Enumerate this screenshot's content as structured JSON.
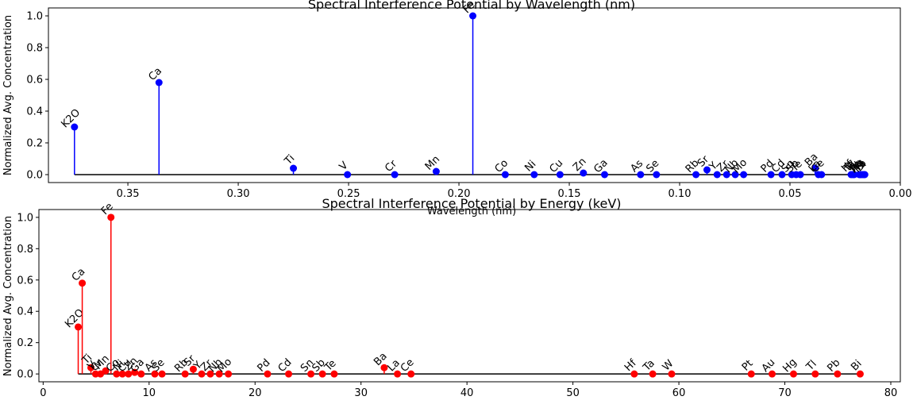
{
  "chart_data": [
    {
      "type": "stem",
      "title": "Spectral Interference Potential by Wavelength (nm)",
      "xlabel": "Wavelength (nm)",
      "ylabel": "Normalized Avg. Concentration",
      "xlim": [
        0.386,
        0.0
      ],
      "ylim": [
        -0.05,
        1.05
      ],
      "xticks": [
        0.35,
        0.3,
        0.25,
        0.2,
        0.15,
        0.1,
        0.05,
        0.0
      ],
      "xtick_labels": [
        "0.35",
        "0.30",
        "0.25",
        "0.20",
        "0.15",
        "0.10",
        "0.05",
        "0.00"
      ],
      "yticks": [
        0.0,
        0.2,
        0.4,
        0.6,
        0.8,
        1.0
      ],
      "ytick_labels": [
        "0.0",
        "0.2",
        "0.4",
        "0.6",
        "0.8",
        "1.0"
      ],
      "color": "#0000ff",
      "baseline": 0.0,
      "points": [
        {
          "label": "K2O",
          "x": 0.3742,
          "y": 0.3
        },
        {
          "label": "Ca",
          "x": 0.3359,
          "y": 0.58
        },
        {
          "label": "Ti",
          "x": 0.275,
          "y": 0.04
        },
        {
          "label": "V",
          "x": 0.2505,
          "y": 0.0
        },
        {
          "label": "Cr",
          "x": 0.2291,
          "y": 0.0
        },
        {
          "label": "Mn",
          "x": 0.2103,
          "y": 0.02
        },
        {
          "label": "Fe",
          "x": 0.1937,
          "y": 1.0
        },
        {
          "label": "Co",
          "x": 0.179,
          "y": 0.0
        },
        {
          "label": "Ni",
          "x": 0.1659,
          "y": 0.0
        },
        {
          "label": "Cu",
          "x": 0.1542,
          "y": 0.0
        },
        {
          "label": "Zn",
          "x": 0.1436,
          "y": 0.01
        },
        {
          "label": "Ga",
          "x": 0.134,
          "y": 0.0
        },
        {
          "label": "As",
          "x": 0.1177,
          "y": 0.0
        },
        {
          "label": "Se",
          "x": 0.1105,
          "y": 0.0
        },
        {
          "label": "Rb",
          "x": 0.0926,
          "y": 0.0
        },
        {
          "label": "Sr",
          "x": 0.0876,
          "y": 0.03
        },
        {
          "label": "Y",
          "x": 0.083,
          "y": 0.0
        },
        {
          "label": "Zr",
          "x": 0.0787,
          "y": 0.0
        },
        {
          "label": "Nb",
          "x": 0.0748,
          "y": 0.0
        },
        {
          "label": "Mo",
          "x": 0.071,
          "y": 0.0
        },
        {
          "label": "Pd",
          "x": 0.0586,
          "y": 0.0
        },
        {
          "label": "Cd",
          "x": 0.0536,
          "y": 0.0
        },
        {
          "label": "Sn",
          "x": 0.0492,
          "y": 0.0
        },
        {
          "label": "Sb",
          "x": 0.0472,
          "y": 0.0
        },
        {
          "label": "Te",
          "x": 0.0453,
          "y": 0.0
        },
        {
          "label": "Ba",
          "x": 0.0386,
          "y": 0.04
        },
        {
          "label": "La",
          "x": 0.0371,
          "y": 0.0
        },
        {
          "label": "Ce",
          "x": 0.0357,
          "y": 0.0
        },
        {
          "label": "Hf",
          "x": 0.0223,
          "y": 0.0
        },
        {
          "label": "Ta",
          "x": 0.0215,
          "y": 0.0
        },
        {
          "label": "W",
          "x": 0.0209,
          "y": 0.0
        },
        {
          "label": "Pt",
          "x": 0.0186,
          "y": 0.0
        },
        {
          "label": "Au",
          "x": 0.018,
          "y": 0.0
        },
        {
          "label": "Hg",
          "x": 0.0178,
          "y": 0.0
        },
        {
          "label": "Tl",
          "x": 0.017,
          "y": 0.0
        },
        {
          "label": "Pb",
          "x": 0.0165,
          "y": 0.0
        },
        {
          "label": "Bi",
          "x": 0.0161,
          "y": 0.0
        }
      ]
    },
    {
      "type": "stem",
      "title": "Spectral Interference Potential by Energy (keV)",
      "xlabel": "",
      "ylabel": "Normalized Avg. Concentration",
      "xlim": [
        -0.4,
        80.9
      ],
      "ylim": [
        -0.05,
        1.05
      ],
      "xticks": [
        0,
        10,
        20,
        30,
        40,
        50,
        60,
        70,
        80
      ],
      "xtick_labels": [
        "0",
        "10",
        "20",
        "30",
        "40",
        "50",
        "60",
        "70",
        "80"
      ],
      "yticks": [
        0.0,
        0.2,
        0.4,
        0.6,
        0.8,
        1.0
      ],
      "ytick_labels": [
        "0.0",
        "0.2",
        "0.4",
        "0.6",
        "0.8",
        "1.0"
      ],
      "color": "#ff0000",
      "baseline": 0.0,
      "points": [
        {
          "label": "K2O",
          "x": 3.31,
          "y": 0.3
        },
        {
          "label": "Ca",
          "x": 3.69,
          "y": 0.58
        },
        {
          "label": "Ti",
          "x": 4.51,
          "y": 0.04
        },
        {
          "label": "V",
          "x": 4.95,
          "y": 0.0
        },
        {
          "label": "Cr",
          "x": 5.41,
          "y": 0.0
        },
        {
          "label": "Mn",
          "x": 5.9,
          "y": 0.02
        },
        {
          "label": "Fe",
          "x": 6.4,
          "y": 1.0
        },
        {
          "label": "Co",
          "x": 6.93,
          "y": 0.0
        },
        {
          "label": "Ni",
          "x": 7.48,
          "y": 0.0
        },
        {
          "label": "Cu",
          "x": 8.05,
          "y": 0.0
        },
        {
          "label": "Zn",
          "x": 8.64,
          "y": 0.01
        },
        {
          "label": "Ga",
          "x": 9.25,
          "y": 0.0
        },
        {
          "label": "As",
          "x": 10.54,
          "y": 0.0
        },
        {
          "label": "Se",
          "x": 11.22,
          "y": 0.0
        },
        {
          "label": "Rb",
          "x": 13.4,
          "y": 0.0
        },
        {
          "label": "Sr",
          "x": 14.17,
          "y": 0.03
        },
        {
          "label": "Y",
          "x": 14.96,
          "y": 0.0
        },
        {
          "label": "Zr",
          "x": 15.78,
          "y": 0.0
        },
        {
          "label": "Nb",
          "x": 16.62,
          "y": 0.0
        },
        {
          "label": "Mo",
          "x": 17.48,
          "y": 0.0
        },
        {
          "label": "Pd",
          "x": 21.18,
          "y": 0.0
        },
        {
          "label": "Cd",
          "x": 23.17,
          "y": 0.0
        },
        {
          "label": "Sn",
          "x": 25.27,
          "y": 0.0
        },
        {
          "label": "Sb",
          "x": 26.36,
          "y": 0.0
        },
        {
          "label": "Te",
          "x": 27.47,
          "y": 0.0
        },
        {
          "label": "Ba",
          "x": 32.19,
          "y": 0.04
        },
        {
          "label": "La",
          "x": 33.44,
          "y": 0.0
        },
        {
          "label": "Ce",
          "x": 34.72,
          "y": 0.0
        },
        {
          "label": "Hf",
          "x": 55.79,
          "y": 0.0
        },
        {
          "label": "Ta",
          "x": 57.53,
          "y": 0.0
        },
        {
          "label": "W",
          "x": 59.32,
          "y": 0.0
        },
        {
          "label": "Pt",
          "x": 66.83,
          "y": 0.0
        },
        {
          "label": "Au",
          "x": 68.8,
          "y": 0.0
        },
        {
          "label": "Hg",
          "x": 70.82,
          "y": 0.0
        },
        {
          "label": "Tl",
          "x": 72.87,
          "y": 0.0
        },
        {
          "label": "Pb",
          "x": 74.97,
          "y": 0.0
        },
        {
          "label": "Bi",
          "x": 77.11,
          "y": 0.0
        }
      ]
    }
  ]
}
